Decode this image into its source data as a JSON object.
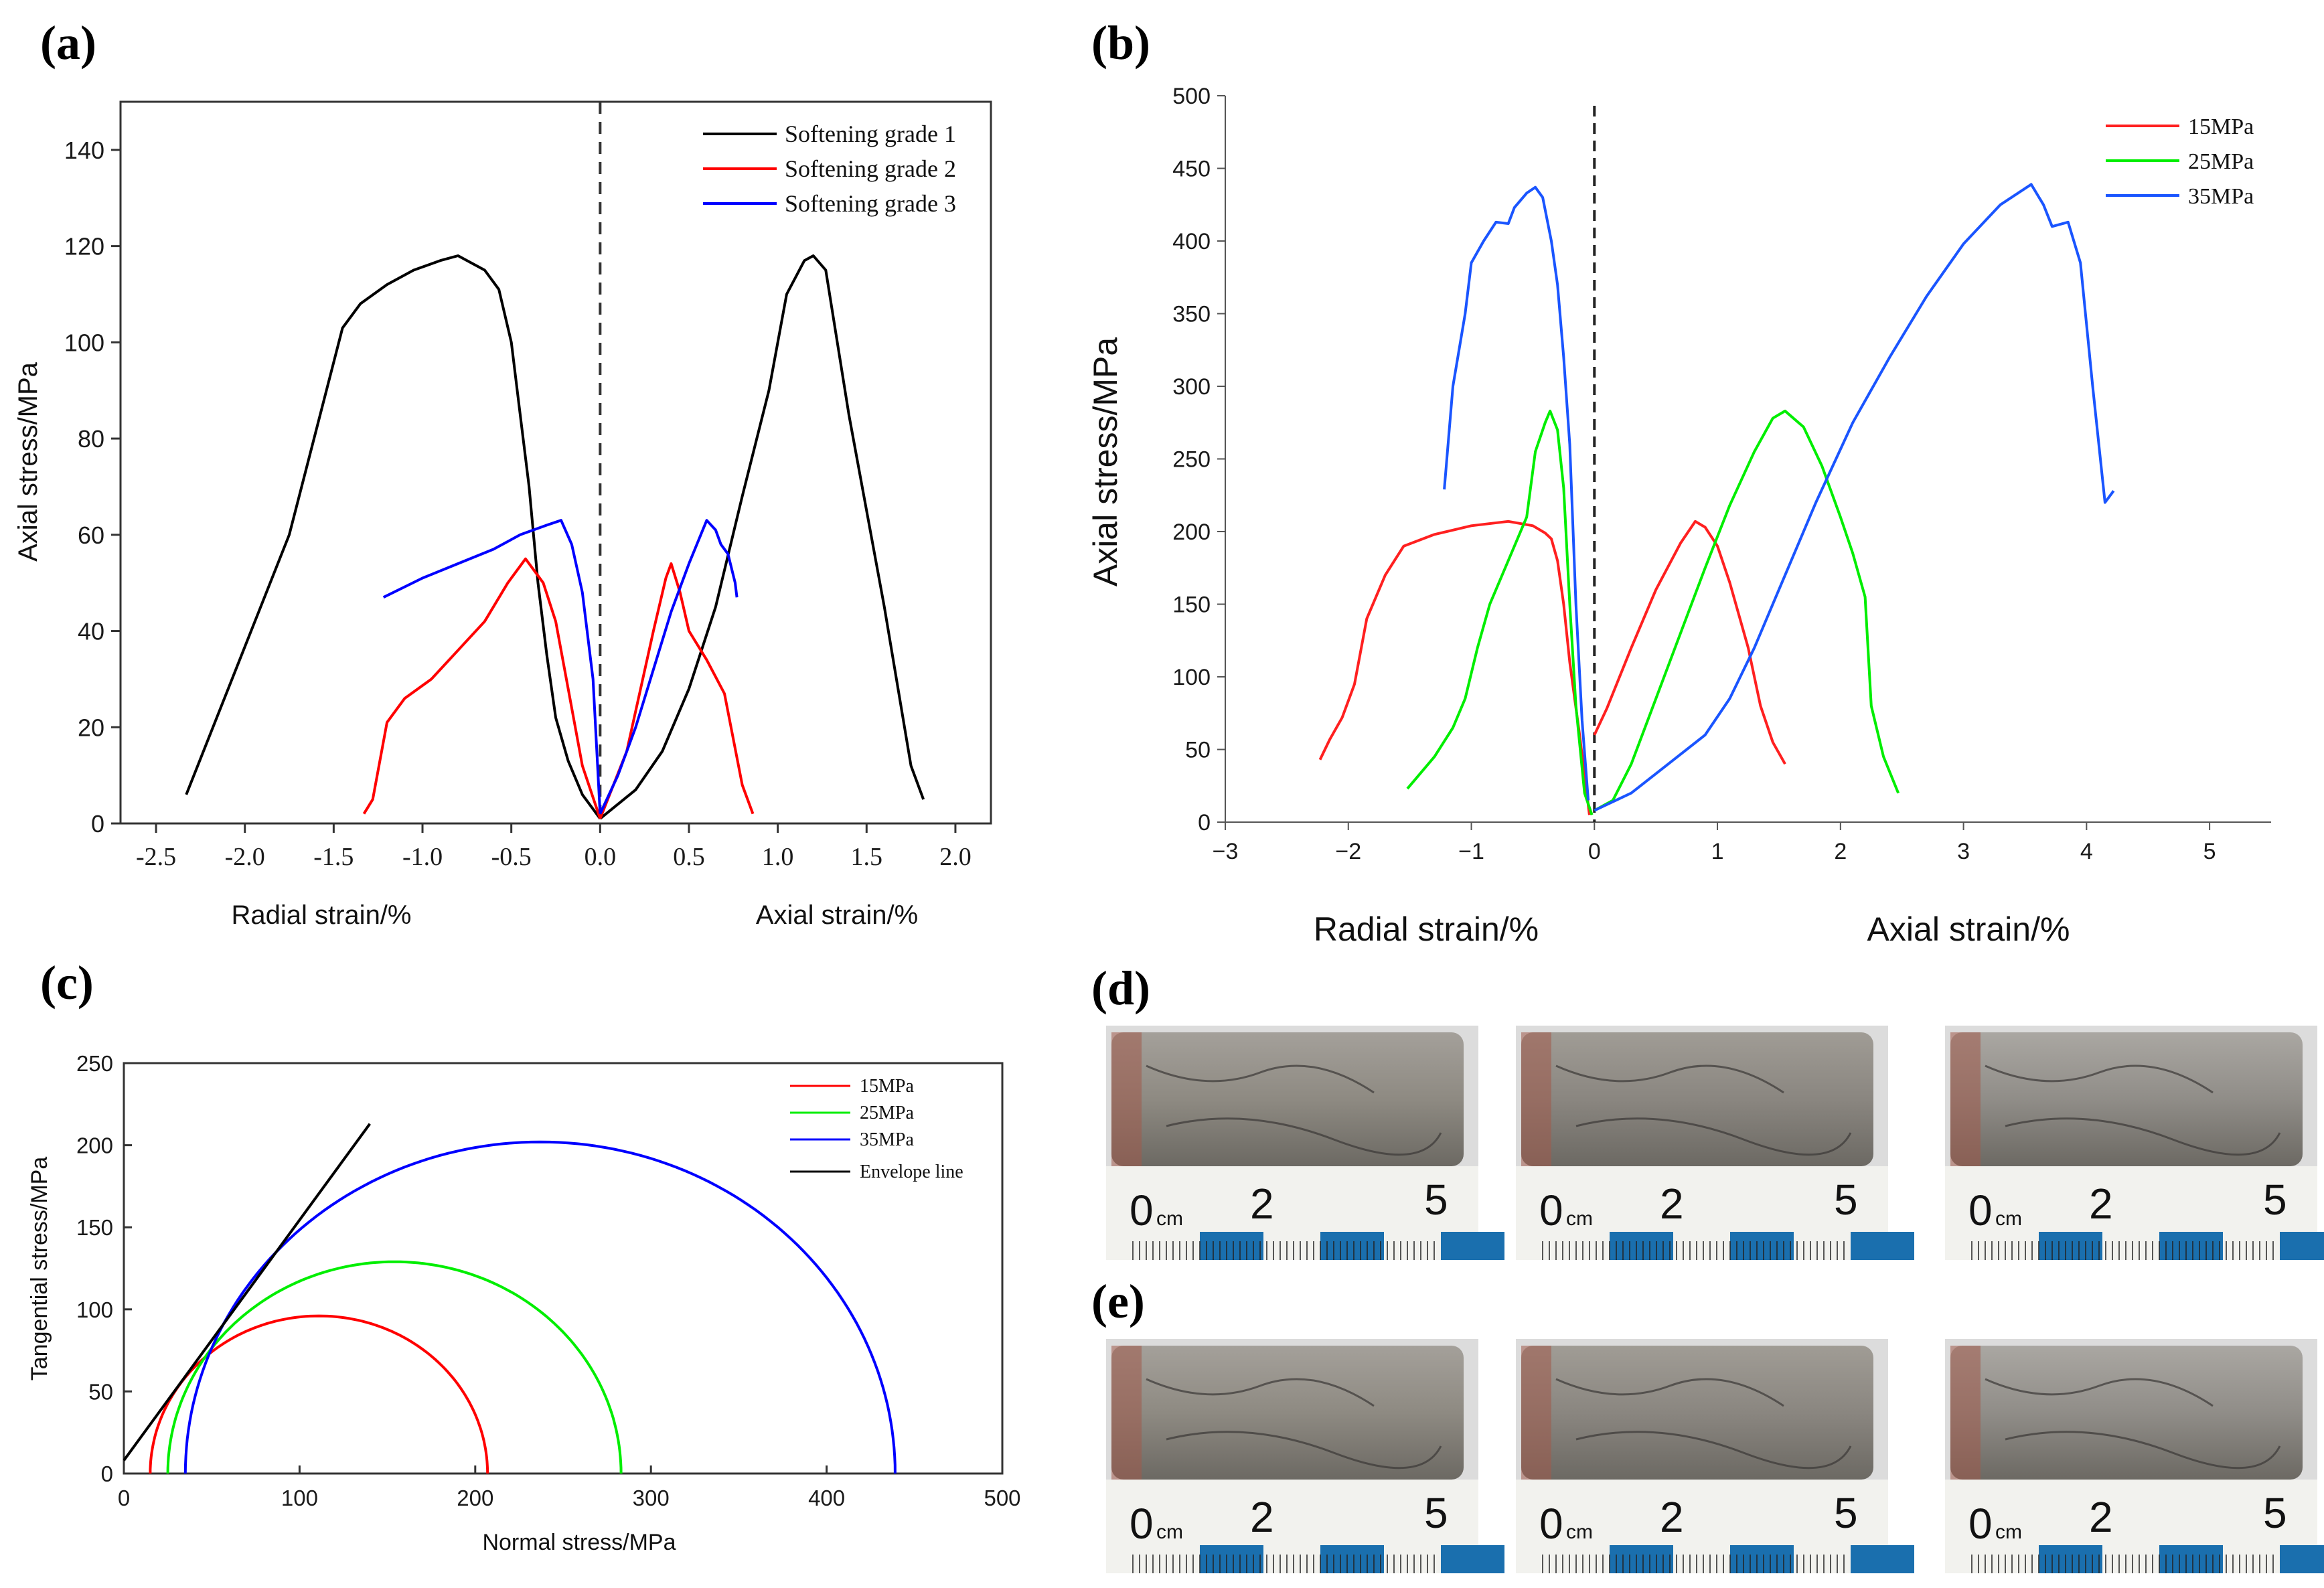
{
  "panels": {
    "a": "(a)",
    "b": "(b)",
    "c": "(c)",
    "d": "(d)",
    "e": "(e)"
  },
  "chart_data": [
    {
      "id": "a",
      "type": "line",
      "ylabel": "Axial stress/MPa",
      "xlabel_left": "Radial strain/%",
      "xlabel_right": "Axial strain/%",
      "xlim": [
        -2.7,
        2.2
      ],
      "ylim": [
        0,
        150
      ],
      "xticks": [
        -2.5,
        -2.0,
        -1.5,
        -1.0,
        -0.5,
        0.0,
        0.5,
        1.0,
        1.5,
        2.0
      ],
      "xtick_labels": [
        "-2.5",
        "-2.0",
        "-1.5",
        "-1.0",
        "-0.5",
        "0.0",
        "0.5",
        "1.0",
        "1.5",
        "2.0"
      ],
      "yticks": [
        0,
        20,
        40,
        60,
        80,
        100,
        120,
        140
      ],
      "ytick_labels": [
        "0",
        "20",
        "40",
        "60",
        "80",
        "100",
        "120",
        "140"
      ],
      "legend_position": "top-right",
      "series": [
        {
          "name": "Softening grade 1",
          "color": "#000000",
          "radial": [
            [
              -2.33,
              6
            ],
            [
              -1.75,
              60
            ],
            [
              -1.45,
              103
            ],
            [
              -1.35,
              108
            ],
            [
              -1.2,
              112
            ],
            [
              -1.05,
              115
            ],
            [
              -0.9,
              117
            ],
            [
              -0.8,
              118
            ],
            [
              -0.65,
              115
            ],
            [
              -0.57,
              111
            ],
            [
              -0.5,
              100
            ],
            [
              -0.45,
              85
            ],
            [
              -0.4,
              70
            ],
            [
              -0.35,
              50
            ],
            [
              -0.3,
              35
            ],
            [
              -0.25,
              22
            ],
            [
              -0.18,
              13
            ],
            [
              -0.1,
              6
            ],
            [
              0.0,
              1
            ]
          ],
          "axial": [
            [
              0.0,
              1
            ],
            [
              0.2,
              7
            ],
            [
              0.35,
              15
            ],
            [
              0.5,
              28
            ],
            [
              0.65,
              45
            ],
            [
              0.8,
              68
            ],
            [
              0.95,
              90
            ],
            [
              1.05,
              110
            ],
            [
              1.15,
              117
            ],
            [
              1.2,
              118
            ],
            [
              1.27,
              115
            ],
            [
              1.4,
              85
            ],
            [
              1.6,
              45
            ],
            [
              1.75,
              12
            ],
            [
              1.82,
              5
            ]
          ]
        },
        {
          "name": "Softening grade 2",
          "color": "#ff0000",
          "radial": [
            [
              -1.33,
              2
            ],
            [
              -1.28,
              5
            ],
            [
              -1.2,
              21
            ],
            [
              -1.1,
              26
            ],
            [
              -0.95,
              30
            ],
            [
              -0.8,
              36
            ],
            [
              -0.65,
              42
            ],
            [
              -0.52,
              50
            ],
            [
              -0.42,
              55
            ],
            [
              -0.32,
              50
            ],
            [
              -0.25,
              42
            ],
            [
              -0.18,
              28
            ],
            [
              -0.1,
              12
            ],
            [
              0.0,
              1
            ]
          ],
          "axial": [
            [
              0.0,
              1
            ],
            [
              0.15,
              15
            ],
            [
              0.3,
              40
            ],
            [
              0.37,
              51
            ],
            [
              0.4,
              54
            ],
            [
              0.45,
              48
            ],
            [
              0.5,
              40
            ],
            [
              0.6,
              34
            ],
            [
              0.7,
              27
            ],
            [
              0.8,
              8
            ],
            [
              0.86,
              2
            ]
          ]
        },
        {
          "name": "Softening grade 3",
          "color": "#0000ff",
          "radial": [
            [
              -1.22,
              47
            ],
            [
              -1.0,
              51
            ],
            [
              -0.8,
              54
            ],
            [
              -0.6,
              57
            ],
            [
              -0.45,
              60
            ],
            [
              -0.3,
              62
            ],
            [
              -0.22,
              63
            ],
            [
              -0.16,
              58
            ],
            [
              -0.1,
              48
            ],
            [
              -0.04,
              30
            ],
            [
              0.0,
              2
            ]
          ],
          "axial": [
            [
              0.0,
              2
            ],
            [
              0.1,
              10
            ],
            [
              0.2,
              20
            ],
            [
              0.3,
              32
            ],
            [
              0.4,
              44
            ],
            [
              0.5,
              54
            ],
            [
              0.6,
              63
            ],
            [
              0.65,
              61
            ],
            [
              0.68,
              58
            ],
            [
              0.72,
              56
            ],
            [
              0.76,
              50
            ],
            [
              0.77,
              47
            ]
          ]
        }
      ]
    },
    {
      "id": "b",
      "type": "line",
      "ylabel": "Axial stress/MPa",
      "xlabel_left": "Radial strain/%",
      "xlabel_right": "Axial strain/%",
      "xlim": [
        -3,
        5.5
      ],
      "ylim": [
        0,
        500
      ],
      "xticks": [
        -3,
        -2,
        -1,
        0,
        1,
        2,
        3,
        4,
        5
      ],
      "xtick_labels": [
        "−3",
        "−2",
        "−1",
        "0",
        "1",
        "2",
        "3",
        "4",
        "5"
      ],
      "yticks": [
        0,
        50,
        100,
        150,
        200,
        250,
        300,
        350,
        400,
        450,
        500
      ],
      "ytick_labels": [
        "0",
        "50",
        "100",
        "150",
        "200",
        "250",
        "300",
        "350",
        "400",
        "450",
        "500"
      ],
      "legend_position": "top-right",
      "series": [
        {
          "name": "15MPa",
          "color": "#ff2020",
          "radial": [
            [
              -2.23,
              43
            ],
            [
              -2.15,
              57
            ],
            [
              -2.05,
              72
            ],
            [
              -1.95,
              95
            ],
            [
              -1.85,
              140
            ],
            [
              -1.7,
              170
            ],
            [
              -1.55,
              190
            ],
            [
              -1.3,
              198
            ],
            [
              -1.0,
              204
            ],
            [
              -0.7,
              207
            ],
            [
              -0.5,
              204
            ],
            [
              -0.4,
              199
            ],
            [
              -0.35,
              195
            ],
            [
              -0.3,
              180
            ],
            [
              -0.25,
              150
            ],
            [
              -0.2,
              110
            ],
            [
              -0.12,
              60
            ],
            [
              -0.04,
              5
            ]
          ],
          "axial": [
            [
              0.0,
              60
            ],
            [
              0.1,
              78
            ],
            [
              0.3,
              120
            ],
            [
              0.5,
              160
            ],
            [
              0.7,
              192
            ],
            [
              0.82,
              207
            ],
            [
              0.9,
              203
            ],
            [
              1.0,
              190
            ],
            [
              1.1,
              165
            ],
            [
              1.25,
              120
            ],
            [
              1.35,
              80
            ],
            [
              1.45,
              55
            ],
            [
              1.55,
              40
            ]
          ]
        },
        {
          "name": "25MPa",
          "color": "#00ee00",
          "radial": [
            [
              -1.52,
              23
            ],
            [
              -1.3,
              45
            ],
            [
              -1.15,
              65
            ],
            [
              -1.05,
              85
            ],
            [
              -0.95,
              120
            ],
            [
              -0.85,
              150
            ],
            [
              -0.7,
              180
            ],
            [
              -0.55,
              210
            ],
            [
              -0.48,
              255
            ],
            [
              -0.4,
              275
            ],
            [
              -0.36,
              283
            ],
            [
              -0.3,
              270
            ],
            [
              -0.25,
              230
            ],
            [
              -0.2,
              150
            ],
            [
              -0.15,
              80
            ],
            [
              -0.08,
              20
            ],
            [
              -0.02,
              5
            ]
          ],
          "axial": [
            [
              0.0,
              8
            ],
            [
              0.15,
              15
            ],
            [
              0.3,
              40
            ],
            [
              0.5,
              85
            ],
            [
              0.7,
              130
            ],
            [
              0.9,
              175
            ],
            [
              1.1,
              218
            ],
            [
              1.3,
              255
            ],
            [
              1.45,
              278
            ],
            [
              1.55,
              283
            ],
            [
              1.7,
              272
            ],
            [
              1.85,
              245
            ],
            [
              2.0,
              210
            ],
            [
              2.1,
              185
            ],
            [
              2.2,
              155
            ],
            [
              2.25,
              80
            ],
            [
              2.35,
              45
            ],
            [
              2.47,
              20
            ]
          ]
        },
        {
          "name": "35MPa",
          "color": "#1a55ff",
          "radial": [
            [
              -1.22,
              229
            ],
            [
              -1.15,
              300
            ],
            [
              -1.05,
              350
            ],
            [
              -1.0,
              385
            ],
            [
              -0.9,
              400
            ],
            [
              -0.8,
              413
            ],
            [
              -0.7,
              412
            ],
            [
              -0.65,
              423
            ],
            [
              -0.55,
              433
            ],
            [
              -0.48,
              437
            ],
            [
              -0.42,
              430
            ],
            [
              -0.35,
              400
            ],
            [
              -0.3,
              370
            ],
            [
              -0.25,
              320
            ],
            [
              -0.2,
              260
            ],
            [
              -0.15,
              150
            ],
            [
              -0.1,
              70
            ],
            [
              -0.05,
              15
            ]
          ],
          "axial": [
            [
              0.0,
              8
            ],
            [
              0.3,
              20
            ],
            [
              0.6,
              40
            ],
            [
              0.9,
              60
            ],
            [
              1.1,
              85
            ],
            [
              1.3,
              120
            ],
            [
              1.5,
              160
            ],
            [
              1.8,
              220
            ],
            [
              2.1,
              275
            ],
            [
              2.4,
              320
            ],
            [
              2.7,
              362
            ],
            [
              3.0,
              398
            ],
            [
              3.3,
              425
            ],
            [
              3.55,
              439
            ],
            [
              3.65,
              425
            ],
            [
              3.72,
              410
            ],
            [
              3.85,
              413
            ],
            [
              3.95,
              385
            ],
            [
              4.05,
              300
            ],
            [
              4.15,
              220
            ],
            [
              4.22,
              228
            ]
          ]
        }
      ]
    },
    {
      "id": "c",
      "type": "line",
      "xlabel": "Normal stress/MPa",
      "ylabel": "Tangential stress/MPa",
      "xlim": [
        0,
        500
      ],
      "ylim": [
        0,
        250
      ],
      "xticks": [
        0,
        100,
        200,
        300,
        400,
        500
      ],
      "xtick_labels": [
        "0",
        "100",
        "200",
        "300",
        "400",
        "500"
      ],
      "yticks": [
        0,
        50,
        100,
        150,
        200,
        250
      ],
      "ytick_labels": [
        "0",
        "50",
        "100",
        "150",
        "200",
        "250"
      ],
      "legend_position": "top-right",
      "circles": [
        {
          "name": "15MPa",
          "color": "#ff0000",
          "sigma3": 15,
          "sigma1": 207
        },
        {
          "name": "25MPa",
          "color": "#00ee00",
          "sigma3": 25,
          "sigma1": 283
        },
        {
          "name": "35MPa",
          "color": "#0000ff",
          "sigma3": 35,
          "sigma1": 439
        }
      ],
      "envelope": {
        "name": "Envelope line",
        "color": "#000000",
        "x": [
          0,
          140
        ],
        "y": [
          8,
          213
        ]
      }
    }
  ],
  "photos": {
    "d": [
      {
        "scale": [
          "0",
          "cm",
          "2",
          "5"
        ]
      },
      {
        "scale": [
          "0",
          "cm",
          "2",
          "5"
        ]
      },
      {
        "scale": [
          "0",
          "cm",
          "2",
          "5"
        ]
      }
    ],
    "e": [
      {
        "scale": [
          "0",
          "cm",
          "2",
          "5"
        ]
      },
      {
        "scale": [
          "0",
          "cm",
          "2",
          "5"
        ]
      },
      {
        "scale": [
          "0",
          "cm",
          "2",
          "5"
        ]
      }
    ]
  }
}
